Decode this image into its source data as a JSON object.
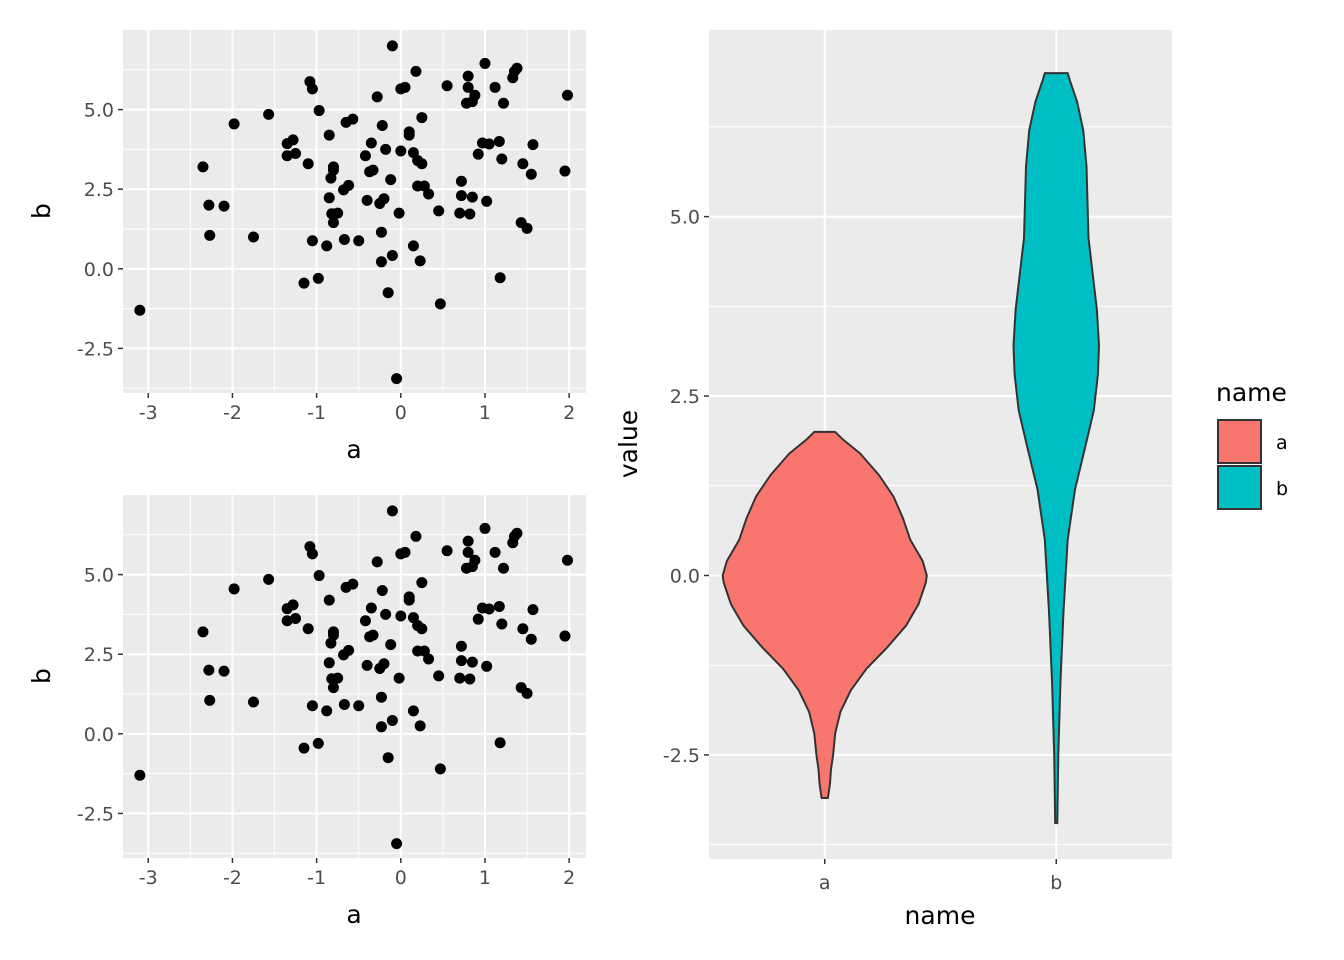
{
  "chart_data": [
    {
      "type": "scatter",
      "xlabel": "a",
      "ylabel": "b",
      "xlim": [
        -3.3,
        2.2
      ],
      "ylim": [
        -3.9,
        7.5
      ],
      "xticks": [
        "-3",
        "-2",
        "-1",
        "0",
        "1",
        "2"
      ],
      "yticks": [
        "-2.5",
        "0.0",
        "2.5",
        "5.0"
      ],
      "grid": true,
      "point_color": "#000000",
      "points": [
        [
          -3.1,
          -1.3
        ],
        [
          -2.35,
          3.2
        ],
        [
          -2.28,
          2.0
        ],
        [
          -2.27,
          1.05
        ],
        [
          -2.1,
          1.97
        ],
        [
          -1.98,
          4.55
        ],
        [
          -1.75,
          1.0
        ],
        [
          -1.57,
          4.85
        ],
        [
          -1.35,
          3.55
        ],
        [
          -1.35,
          3.93
        ],
        [
          -1.28,
          4.05
        ],
        [
          -1.25,
          3.62
        ],
        [
          -1.15,
          -0.45
        ],
        [
          -1.1,
          3.3
        ],
        [
          -1.08,
          5.88
        ],
        [
          -1.05,
          5.65
        ],
        [
          -1.05,
          0.88
        ],
        [
          -0.98,
          -0.3
        ],
        [
          -0.97,
          4.97
        ],
        [
          -0.88,
          0.72
        ],
        [
          -0.85,
          2.23
        ],
        [
          -0.85,
          4.2
        ],
        [
          -0.83,
          2.85
        ],
        [
          -0.82,
          1.73
        ],
        [
          -0.8,
          3.2
        ],
        [
          -0.8,
          1.45
        ],
        [
          -0.8,
          3.1
        ],
        [
          -0.75,
          1.75
        ],
        [
          -0.68,
          2.48
        ],
        [
          -0.67,
          0.92
        ],
        [
          -0.65,
          4.6
        ],
        [
          -0.62,
          2.62
        ],
        [
          -0.57,
          4.7
        ],
        [
          -0.5,
          0.88
        ],
        [
          -0.42,
          3.55
        ],
        [
          -0.4,
          2.15
        ],
        [
          -0.37,
          3.05
        ],
        [
          -0.35,
          3.95
        ],
        [
          -0.33,
          3.1
        ],
        [
          -0.28,
          5.4
        ],
        [
          -0.25,
          2.05
        ],
        [
          -0.23,
          1.15
        ],
        [
          -0.23,
          0.22
        ],
        [
          -0.22,
          4.5
        ],
        [
          -0.2,
          2.2
        ],
        [
          -0.18,
          3.75
        ],
        [
          -0.15,
          -0.75
        ],
        [
          -0.12,
          2.8
        ],
        [
          -0.1,
          7.0
        ],
        [
          -0.1,
          0.42
        ],
        [
          -0.05,
          -3.45
        ],
        [
          -0.02,
          1.75
        ],
        [
          0.0,
          5.65
        ],
        [
          0.0,
          3.7
        ],
        [
          0.05,
          5.7
        ],
        [
          0.1,
          4.2
        ],
        [
          0.1,
          4.3
        ],
        [
          0.15,
          3.65
        ],
        [
          0.15,
          0.72
        ],
        [
          0.18,
          6.2
        ],
        [
          0.2,
          3.4
        ],
        [
          0.2,
          2.6
        ],
        [
          0.23,
          0.25
        ],
        [
          0.25,
          4.75
        ],
        [
          0.25,
          3.3
        ],
        [
          0.28,
          2.6
        ],
        [
          0.33,
          2.35
        ],
        [
          0.45,
          1.82
        ],
        [
          0.47,
          -1.1
        ],
        [
          0.55,
          5.75
        ],
        [
          0.7,
          1.75
        ],
        [
          0.72,
          2.3
        ],
        [
          0.72,
          2.75
        ],
        [
          0.78,
          5.2
        ],
        [
          0.8,
          5.7
        ],
        [
          0.8,
          6.05
        ],
        [
          0.82,
          1.72
        ],
        [
          0.85,
          5.25
        ],
        [
          0.85,
          2.25
        ],
        [
          0.88,
          5.45
        ],
        [
          0.92,
          3.6
        ],
        [
          0.97,
          3.95
        ],
        [
          1.0,
          6.45
        ],
        [
          1.02,
          2.12
        ],
        [
          1.05,
          3.92
        ],
        [
          1.12,
          5.7
        ],
        [
          1.17,
          4.0
        ],
        [
          1.18,
          -0.28
        ],
        [
          1.2,
          3.45
        ],
        [
          1.22,
          5.2
        ],
        [
          1.33,
          6.0
        ],
        [
          1.35,
          6.2
        ],
        [
          1.38,
          6.3
        ],
        [
          1.43,
          1.45
        ],
        [
          1.45,
          3.3
        ],
        [
          1.5,
          1.27
        ],
        [
          1.55,
          2.97
        ],
        [
          1.57,
          3.9
        ],
        [
          1.95,
          3.07
        ],
        [
          1.98,
          5.45
        ]
      ]
    },
    {
      "type": "scatter",
      "xlabel": "a",
      "ylabel": "b",
      "xlim": [
        -3.3,
        2.2
      ],
      "ylim": [
        -3.9,
        7.5
      ],
      "xticks": [
        "-3",
        "-2",
        "-1",
        "0",
        "1",
        "2"
      ],
      "yticks": [
        "-2.5",
        "0.0",
        "2.5",
        "5.0"
      ],
      "grid": true,
      "point_color": "#000000",
      "points": [
        [
          -3.1,
          -1.3
        ],
        [
          -2.35,
          3.2
        ],
        [
          -2.28,
          2.0
        ],
        [
          -2.27,
          1.05
        ],
        [
          -2.1,
          1.97
        ],
        [
          -1.98,
          4.55
        ],
        [
          -1.75,
          1.0
        ],
        [
          -1.57,
          4.85
        ],
        [
          -1.35,
          3.55
        ],
        [
          -1.35,
          3.93
        ],
        [
          -1.28,
          4.05
        ],
        [
          -1.25,
          3.62
        ],
        [
          -1.15,
          -0.45
        ],
        [
          -1.1,
          3.3
        ],
        [
          -1.08,
          5.88
        ],
        [
          -1.05,
          5.65
        ],
        [
          -1.05,
          0.88
        ],
        [
          -0.98,
          -0.3
        ],
        [
          -0.97,
          4.97
        ],
        [
          -0.88,
          0.72
        ],
        [
          -0.85,
          2.23
        ],
        [
          -0.85,
          4.2
        ],
        [
          -0.83,
          2.85
        ],
        [
          -0.82,
          1.73
        ],
        [
          -0.8,
          3.2
        ],
        [
          -0.8,
          1.45
        ],
        [
          -0.8,
          3.1
        ],
        [
          -0.75,
          1.75
        ],
        [
          -0.68,
          2.48
        ],
        [
          -0.67,
          0.92
        ],
        [
          -0.65,
          4.6
        ],
        [
          -0.62,
          2.62
        ],
        [
          -0.57,
          4.7
        ],
        [
          -0.5,
          0.88
        ],
        [
          -0.42,
          3.55
        ],
        [
          -0.4,
          2.15
        ],
        [
          -0.37,
          3.05
        ],
        [
          -0.35,
          3.95
        ],
        [
          -0.33,
          3.1
        ],
        [
          -0.28,
          5.4
        ],
        [
          -0.25,
          2.05
        ],
        [
          -0.23,
          1.15
        ],
        [
          -0.23,
          0.22
        ],
        [
          -0.22,
          4.5
        ],
        [
          -0.2,
          2.2
        ],
        [
          -0.18,
          3.75
        ],
        [
          -0.15,
          -0.75
        ],
        [
          -0.12,
          2.8
        ],
        [
          -0.1,
          7.0
        ],
        [
          -0.1,
          0.42
        ],
        [
          -0.05,
          -3.45
        ],
        [
          -0.02,
          1.75
        ],
        [
          0.0,
          5.65
        ],
        [
          0.0,
          3.7
        ],
        [
          0.05,
          5.7
        ],
        [
          0.1,
          4.2
        ],
        [
          0.1,
          4.3
        ],
        [
          0.15,
          3.65
        ],
        [
          0.15,
          0.72
        ],
        [
          0.18,
          6.2
        ],
        [
          0.2,
          3.4
        ],
        [
          0.2,
          2.6
        ],
        [
          0.23,
          0.25
        ],
        [
          0.25,
          4.75
        ],
        [
          0.25,
          3.3
        ],
        [
          0.28,
          2.6
        ],
        [
          0.33,
          2.35
        ],
        [
          0.45,
          1.82
        ],
        [
          0.47,
          -1.1
        ],
        [
          0.55,
          5.75
        ],
        [
          0.7,
          1.75
        ],
        [
          0.72,
          2.3
        ],
        [
          0.72,
          2.75
        ],
        [
          0.78,
          5.2
        ],
        [
          0.8,
          5.7
        ],
        [
          0.8,
          6.05
        ],
        [
          0.82,
          1.72
        ],
        [
          0.85,
          5.25
        ],
        [
          0.85,
          2.25
        ],
        [
          0.88,
          5.45
        ],
        [
          0.92,
          3.6
        ],
        [
          0.97,
          3.95
        ],
        [
          1.0,
          6.45
        ],
        [
          1.02,
          2.12
        ],
        [
          1.05,
          3.92
        ],
        [
          1.12,
          5.7
        ],
        [
          1.17,
          4.0
        ],
        [
          1.18,
          -0.28
        ],
        [
          1.2,
          3.45
        ],
        [
          1.22,
          5.2
        ],
        [
          1.33,
          6.0
        ],
        [
          1.35,
          6.2
        ],
        [
          1.38,
          6.3
        ],
        [
          1.43,
          1.45
        ],
        [
          1.45,
          3.3
        ],
        [
          1.5,
          1.27
        ],
        [
          1.55,
          2.97
        ],
        [
          1.57,
          3.9
        ],
        [
          1.95,
          3.07
        ],
        [
          1.98,
          5.45
        ]
      ]
    },
    {
      "type": "violin",
      "xlabel": "name",
      "ylabel": "value",
      "categories": [
        "a",
        "b"
      ],
      "ylim": [
        -3.95,
        7.6
      ],
      "yticks": [
        "-2.5",
        "0.0",
        "2.5",
        "5.0"
      ],
      "grid": true,
      "legend": {
        "title": "name",
        "position": "right"
      },
      "series": [
        {
          "name": "a",
          "color": "#F8766D",
          "min": -3.1,
          "max": 2.0,
          "density": [
            [
              -3.1,
              0.03
            ],
            [
              -2.9,
              0.05
            ],
            [
              -2.7,
              0.06
            ],
            [
              -2.5,
              0.08
            ],
            [
              -2.2,
              0.1
            ],
            [
              -1.9,
              0.15
            ],
            [
              -1.6,
              0.25
            ],
            [
              -1.3,
              0.4
            ],
            [
              -1.0,
              0.6
            ],
            [
              -0.7,
              0.78
            ],
            [
              -0.4,
              0.9
            ],
            [
              -0.1,
              0.97
            ],
            [
              0.0,
              0.98
            ],
            [
              0.2,
              0.94
            ],
            [
              0.5,
              0.82
            ],
            [
              0.8,
              0.75
            ],
            [
              1.1,
              0.66
            ],
            [
              1.4,
              0.52
            ],
            [
              1.7,
              0.34
            ],
            [
              1.9,
              0.17
            ],
            [
              2.0,
              0.1
            ]
          ]
        },
        {
          "name": "b",
          "color": "#00BFC4",
          "min": -3.45,
          "max": 7.0,
          "density": [
            [
              -3.45,
              0.01
            ],
            [
              -2.5,
              0.02
            ],
            [
              -1.5,
              0.04
            ],
            [
              -0.5,
              0.07
            ],
            [
              0.5,
              0.11
            ],
            [
              1.2,
              0.18
            ],
            [
              1.8,
              0.28
            ],
            [
              2.3,
              0.36
            ],
            [
              2.8,
              0.4
            ],
            [
              3.2,
              0.41
            ],
            [
              3.7,
              0.39
            ],
            [
              4.2,
              0.35
            ],
            [
              4.7,
              0.31
            ],
            [
              5.2,
              0.3
            ],
            [
              5.7,
              0.29
            ],
            [
              6.2,
              0.26
            ],
            [
              6.6,
              0.2
            ],
            [
              6.9,
              0.13
            ],
            [
              7.0,
              0.11
            ]
          ]
        }
      ]
    }
  ]
}
